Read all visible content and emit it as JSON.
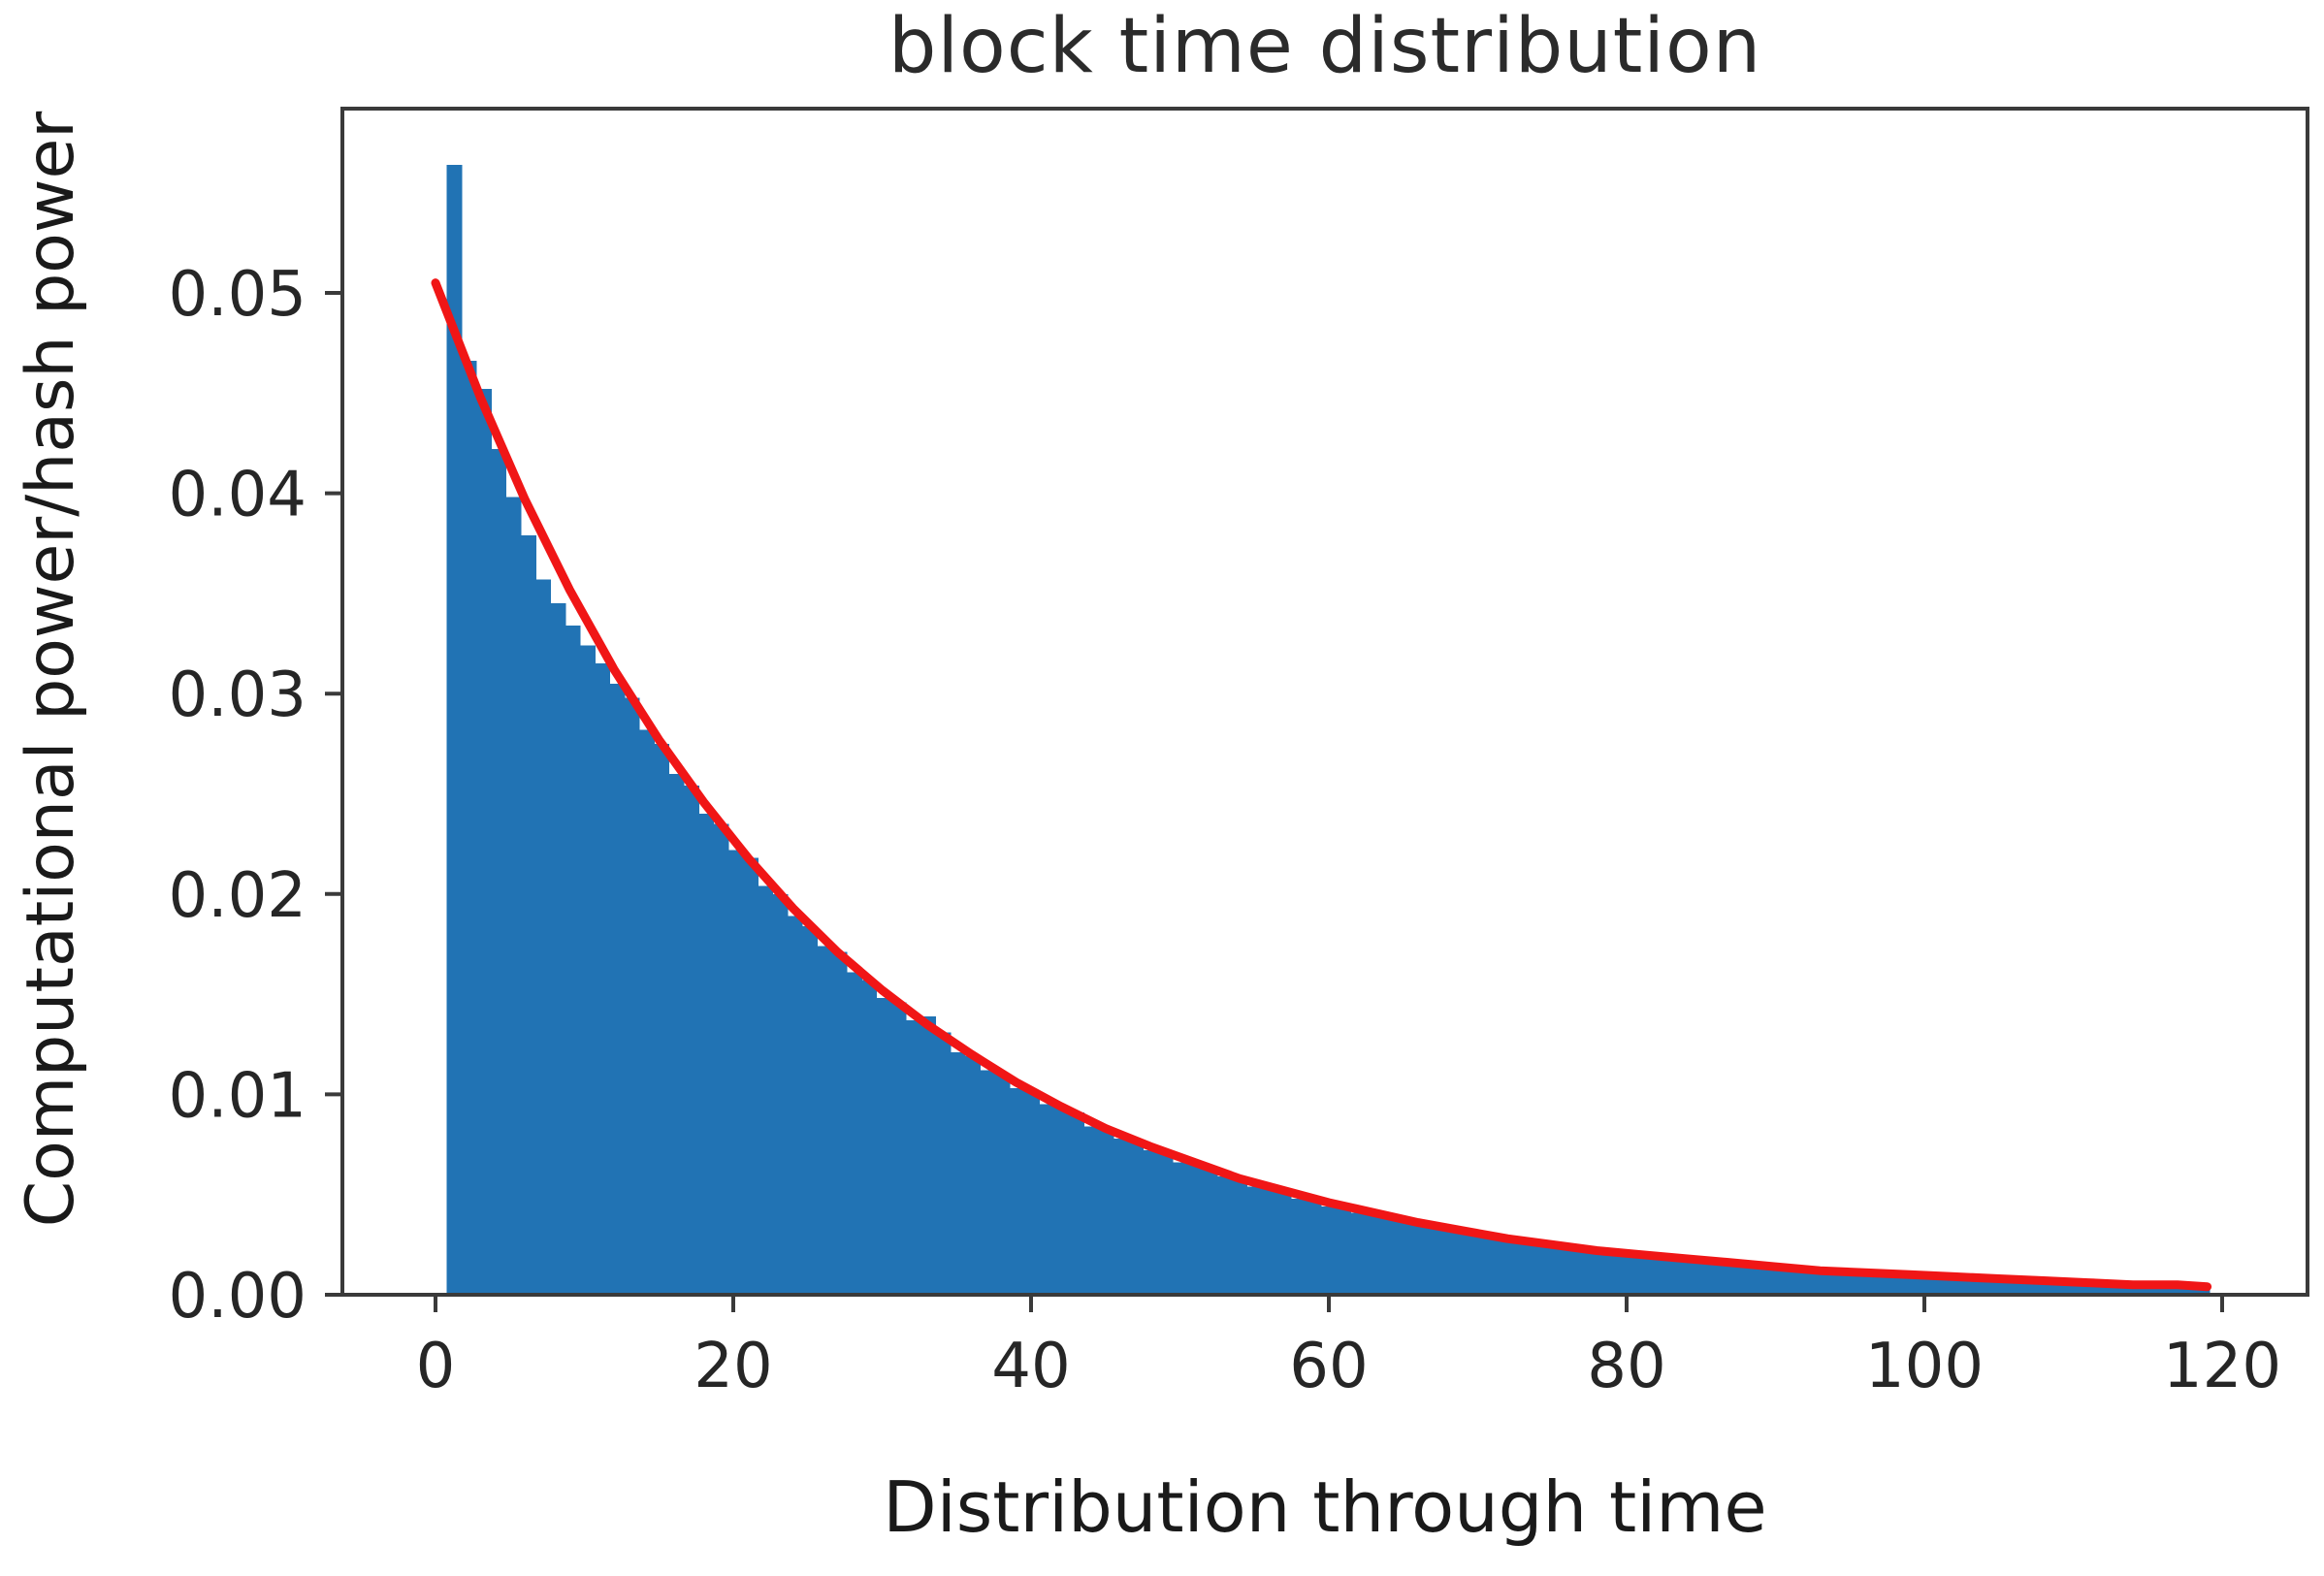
{
  "figure": {
    "kind": "matplotlib-style figure",
    "background_color": "#ffffff"
  },
  "chart_data": {
    "type": "histogram+line",
    "title": "block time distribution",
    "xlabel": "Distribution through time",
    "ylabel": "Computational power/hash power",
    "legend": "none",
    "grid": false,
    "xlim": [
      -6.3,
      125.7
    ],
    "ylim": [
      0,
      0.0592
    ],
    "x_ticks": [
      0,
      20,
      40,
      60,
      80,
      100,
      120
    ],
    "x_tick_labels": [
      "0",
      "20",
      "40",
      "60",
      "80",
      "100",
      "120"
    ],
    "y_ticks": [
      0.0,
      0.01,
      0.02,
      0.03,
      0.04,
      0.05
    ],
    "y_tick_labels": [
      "0.00",
      "0.01",
      "0.02",
      "0.03",
      "0.04",
      "0.05"
    ],
    "colors": {
      "bar_fill": "#2173b4",
      "curve_stroke": "#f01616",
      "axis_spine": "#3a3a3a",
      "tick_text": "#262626",
      "title_text": "#2b2b2b"
    },
    "histogram": {
      "x_start": 0.75,
      "bin_width": 0.995,
      "values": [
        0.0564,
        0.0466,
        0.0452,
        0.0422,
        0.0398,
        0.0379,
        0.0357,
        0.0345,
        0.0334,
        0.0324,
        0.0315,
        0.0305,
        0.0298,
        0.0282,
        0.0275,
        0.026,
        0.0254,
        0.024,
        0.0235,
        0.0222,
        0.0218,
        0.0204,
        0.02,
        0.0189,
        0.0184,
        0.0174,
        0.0171,
        0.0161,
        0.0157,
        0.0148,
        0.0146,
        0.0137,
        0.0139,
        0.0131,
        0.0121,
        0.0119,
        0.0112,
        0.011,
        0.0103,
        0.0102,
        0.0095,
        0.0094,
        0.0091,
        0.0084,
        0.0083,
        0.0078,
        0.0077,
        0.0072,
        0.0071,
        0.0066,
        0.0066,
        0.0064,
        0.0059,
        0.0058,
        0.0054,
        0.0054,
        0.0052,
        0.0048,
        0.0048,
        0.0044,
        0.0044,
        0.0041,
        0.0041,
        0.0038,
        0.0038,
        0.0035,
        0.0035,
        0.0032,
        0.0032,
        0.0031,
        0.0029,
        0.0028,
        0.0027,
        0.0026,
        0.0025,
        0.0024,
        0.0023,
        0.0022,
        0.0021,
        0.0021,
        0.002,
        0.0019,
        0.0018,
        0.0018,
        0.0017,
        0.0016,
        0.0015,
        0.0015,
        0.0014,
        0.0014,
        0.0013,
        0.0013,
        0.0012,
        0.0012,
        0.0011,
        0.0011,
        0.001,
        0.001,
        0.001,
        0.0009,
        0.0009,
        0.0009,
        0.0008,
        0.0008,
        0.0008,
        0.0007,
        0.0007,
        0.0007,
        0.0006,
        0.0006,
        0.0006,
        0.0006,
        0.0006,
        0.0005,
        0.0005,
        0.0005,
        0.0005,
        0.0005,
        0.0004
      ]
    },
    "fit_curve": {
      "description": "exponential fit, approx v = 0.0505 * exp(-x/25)",
      "points": [
        [
          0,
          0.0505
        ],
        [
          3,
          0.0448
        ],
        [
          6,
          0.0397
        ],
        [
          9,
          0.0352
        ],
        [
          12,
          0.0312
        ],
        [
          15,
          0.0277
        ],
        [
          18,
          0.0246
        ],
        [
          21,
          0.0218
        ],
        [
          24,
          0.0193
        ],
        [
          27,
          0.0171
        ],
        [
          30,
          0.0152
        ],
        [
          33,
          0.0135
        ],
        [
          36,
          0.012
        ],
        [
          39,
          0.0106
        ],
        [
          42,
          0.0094
        ],
        [
          45,
          0.0083
        ],
        [
          48,
          0.0074
        ],
        [
          51,
          0.0066
        ],
        [
          54,
          0.0058
        ],
        [
          57,
          0.0052
        ],
        [
          60,
          0.0046
        ],
        [
          63,
          0.0041
        ],
        [
          66,
          0.0036
        ],
        [
          69,
          0.0032
        ],
        [
          72,
          0.0028
        ],
        [
          75,
          0.0025
        ],
        [
          78,
          0.0022
        ],
        [
          81,
          0.002
        ],
        [
          84,
          0.0018
        ],
        [
          87,
          0.0016
        ],
        [
          90,
          0.0014
        ],
        [
          93,
          0.0012
        ],
        [
          96,
          0.0011
        ],
        [
          99,
          0.001
        ],
        [
          102,
          0.0009
        ],
        [
          105,
          0.0008
        ],
        [
          108,
          0.0007
        ],
        [
          111,
          0.0006
        ],
        [
          114,
          0.0005
        ],
        [
          117,
          0.0005
        ],
        [
          119,
          0.0004
        ]
      ]
    }
  }
}
